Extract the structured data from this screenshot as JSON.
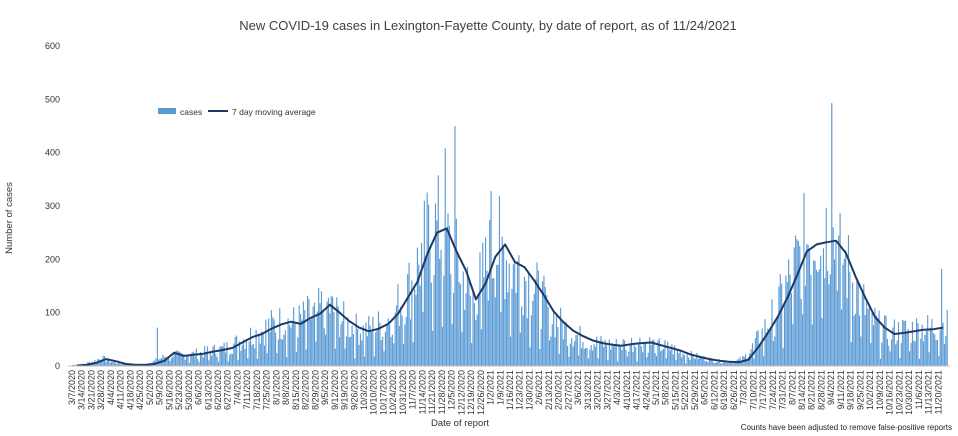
{
  "chart_data": {
    "type": "bar",
    "title": "New COVID-19 cases in Lexington-Fayette County, by date of report, as of 11/24/2021",
    "xlabel": "Date of report",
    "ylabel": "Number of cases",
    "ylim": [
      0,
      600
    ],
    "y_ticks": [
      0,
      100,
      200,
      300,
      400,
      500,
      600
    ],
    "grid": false,
    "legend_position": "top-left",
    "note": "Counts have been adjusted to remove false-positive reports",
    "colors": {
      "cases": "#5b9bd5",
      "moving_average": "#1f3864"
    },
    "x_tick_labels": [
      "3/7/2020",
      "3/14/2020",
      "3/21/2020",
      "3/28/2020",
      "4/4/2020",
      "4/11/2020",
      "4/18/2020",
      "4/25/2020",
      "5/2/2020",
      "5/9/2020",
      "5/16/2020",
      "5/23/2020",
      "5/30/2020",
      "6/6/2020",
      "6/13/2020",
      "6/20/2020",
      "6/27/2020",
      "7/4/2020",
      "7/11/2020",
      "7/18/2020",
      "7/25/2020",
      "8/1/2020",
      "8/8/2020",
      "8/15/2020",
      "8/22/2020",
      "8/29/2020",
      "9/5/2020",
      "9/12/2020",
      "9/19/2020",
      "9/26/2020",
      "10/3/2020",
      "10/10/2020",
      "10/17/2020",
      "10/24/2020",
      "10/31/2020",
      "11/7/2020",
      "11/14/2020",
      "11/21/2020",
      "11/28/2020",
      "12/5/2020",
      "12/12/2020",
      "12/19/2020",
      "12/26/2020",
      "1/2/2021",
      "1/9/2021",
      "1/16/2021",
      "1/23/2021",
      "1/30/2021",
      "2/6/2021",
      "2/13/2021",
      "2/20/2021",
      "2/27/2021",
      "3/6/2021",
      "3/13/2021",
      "3/20/2021",
      "3/27/2021",
      "4/3/2021",
      "4/10/2021",
      "4/17/2021",
      "4/24/2021",
      "5/1/2021",
      "5/8/2021",
      "5/15/2021",
      "5/22/2021",
      "5/29/2021",
      "6/5/2021",
      "6/12/2021",
      "6/19/2021",
      "6/26/2021",
      "7/3/2021",
      "7/10/2021",
      "7/17/2021",
      "7/24/2021",
      "7/31/2021",
      "8/7/2021",
      "8/14/2021",
      "8/21/2021",
      "8/28/2021",
      "9/4/2021",
      "9/11/2021",
      "9/18/2021",
      "9/25/2021",
      "10/2/2021",
      "10/9/2021",
      "10/16/2021",
      "10/23/2021",
      "10/30/2021",
      "11/6/2021",
      "11/13/2021",
      "11/20/2021"
    ],
    "series": [
      {
        "name": "cases",
        "weekly_values": [
          2,
          3,
          8,
          15,
          8,
          4,
          3,
          3,
          5,
          14,
          22,
          20,
          21,
          24,
          28,
          30,
          35,
          45,
          55,
          62,
          72,
          80,
          82,
          80,
          92,
          95,
          118,
          98,
          82,
          70,
          66,
          72,
          80,
          100,
          130,
          160,
          215,
          255,
          250,
          210,
          175,
          120,
          160,
          210,
          225,
          190,
          180,
          155,
          130,
          100,
          80,
          65,
          55,
          48,
          42,
          40,
          38,
          42,
          44,
          45,
          38,
          35,
          30,
          22,
          18,
          14,
          10,
          8,
          8,
          15,
          38,
          65,
          95,
          130,
          175,
          220,
          255,
          260,
          245,
          215,
          165,
          125,
          90,
          70,
          62,
          65,
          68,
          70,
          70,
          75
        ],
        "spikes": [
          {
            "date": "5/7/2020",
            "value": 72
          },
          {
            "date": "11/30/2020",
            "value": 408
          },
          {
            "date": "12/7/2020",
            "value": 450
          },
          {
            "date": "1/2/2021",
            "value": 328
          },
          {
            "date": "9/4/2021",
            "value": 493
          },
          {
            "date": "11/22/2021",
            "value": 182
          }
        ]
      },
      {
        "name": "7 day moving average",
        "weekly_values": [
          1,
          2,
          6,
          13,
          9,
          4,
          2,
          2,
          4,
          10,
          25,
          19,
          21,
          23,
          27,
          30,
          34,
          44,
          54,
          60,
          70,
          78,
          83,
          79,
          90,
          98,
          115,
          100,
          84,
          72,
          65,
          70,
          79,
          98,
          128,
          158,
          210,
          250,
          258,
          215,
          178,
          125,
          155,
          205,
          228,
          195,
          185,
          160,
          132,
          102,
          82,
          66,
          56,
          48,
          43,
          40,
          38,
          41,
          43,
          44,
          39,
          34,
          29,
          22,
          17,
          13,
          10,
          8,
          7,
          12,
          35,
          62,
          92,
          128,
          170,
          215,
          228,
          232,
          235,
          212,
          168,
          128,
          92,
          72,
          60,
          62,
          65,
          68,
          69,
          72
        ]
      }
    ]
  }
}
